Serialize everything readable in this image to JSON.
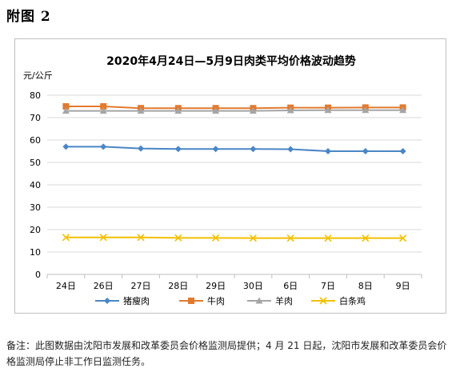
{
  "heading": "附图 2",
  "note": "备注：此图数据由沈阳市发展和改革委员会价格监测局提供；4 月 21 日起，沈阳市发展和改革委员会价格监测局停止非工作日监测任务。",
  "chart_data": {
    "type": "line",
    "title": "2020年4月24日—5月9日肉类平均价格波动趋势",
    "ylabel": "元/公斤",
    "xlabel": "",
    "categories": [
      "24日",
      "26日",
      "27日",
      "28日",
      "29日",
      "30日",
      "6日",
      "7日",
      "8日",
      "9日"
    ],
    "ylim": [
      0,
      80
    ],
    "yticks": [
      0,
      10,
      20,
      30,
      40,
      50,
      60,
      70,
      80
    ],
    "grid": true,
    "legend_position": "bottom",
    "series": [
      {
        "name": "猪瘦肉",
        "color": "#4a86c5",
        "marker": "diamond",
        "values": [
          57.0,
          57.0,
          56.2,
          56.0,
          56.0,
          56.0,
          55.9,
          55.0,
          55.0,
          55.0
        ]
      },
      {
        "name": "牛肉",
        "color": "#e27a2e",
        "marker": "square",
        "values": [
          75.0,
          75.0,
          74.2,
          74.2,
          74.2,
          74.2,
          74.4,
          74.4,
          74.5,
          74.5
        ]
      },
      {
        "name": "羊肉",
        "color": "#a5a5a5",
        "marker": "triangle",
        "values": [
          73.0,
          73.0,
          73.0,
          73.0,
          73.0,
          73.0,
          73.2,
          73.3,
          73.3,
          73.3
        ]
      },
      {
        "name": "白条鸡",
        "color": "#f2c000",
        "marker": "x",
        "values": [
          16.5,
          16.5,
          16.5,
          16.3,
          16.3,
          16.2,
          16.2,
          16.2,
          16.2,
          16.2
        ]
      }
    ]
  }
}
